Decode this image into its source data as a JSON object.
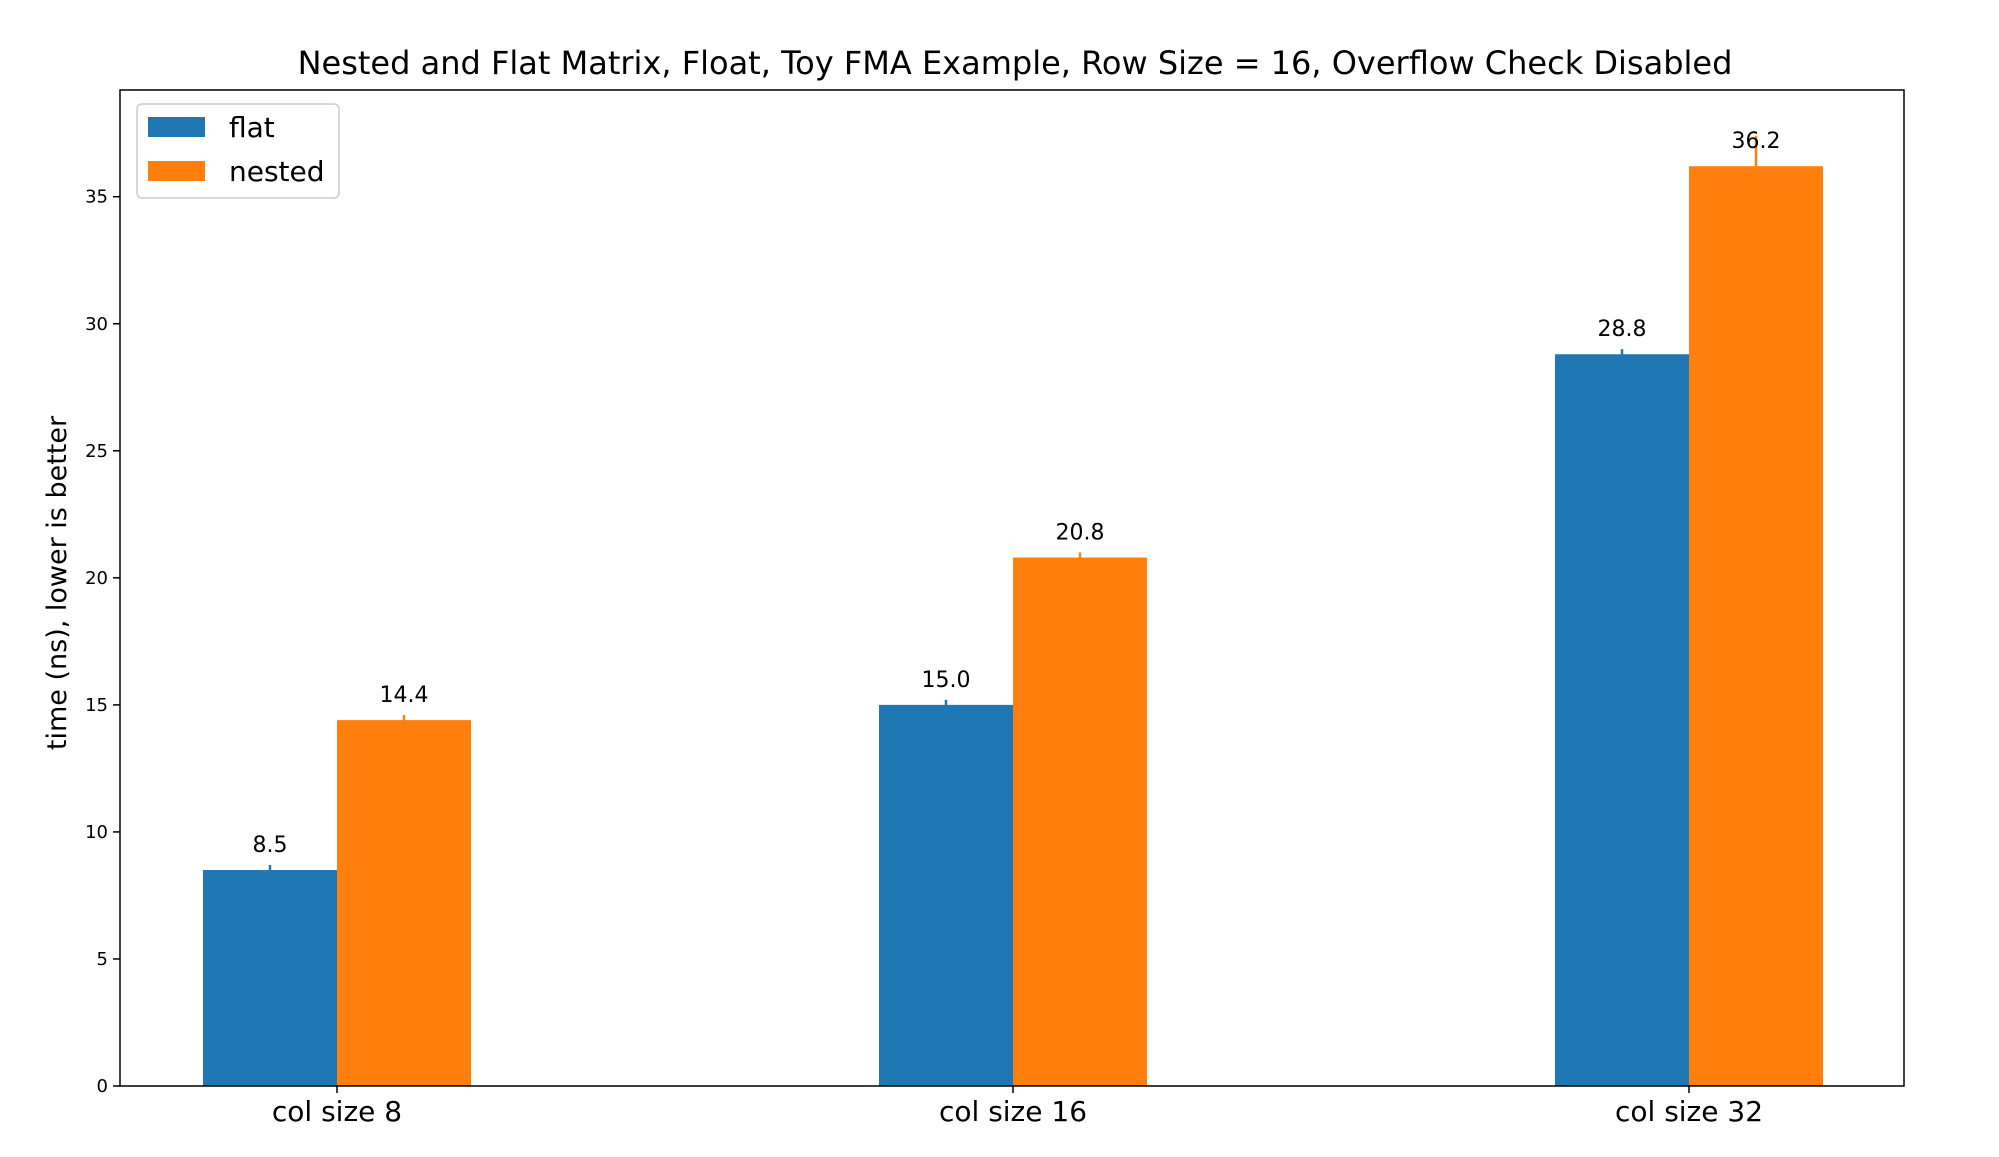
{
  "chart_data": {
    "type": "bar",
    "title": "Nested and Flat Matrix, Float, Toy FMA Example, Row Size = 16, Overflow Check Disabled",
    "xlabel": "",
    "ylabel": "time (ns), lower is better",
    "categories": [
      "col size 8",
      "col size 16",
      "col size 32"
    ],
    "series": [
      {
        "name": "flat",
        "color": "#1f77b4",
        "values": [
          8.5,
          15.0,
          28.8
        ],
        "labels": [
          "8.5",
          "15.0",
          "28.8"
        ],
        "errors": [
          0.2,
          0.2,
          0.2
        ]
      },
      {
        "name": "nested",
        "color": "#ff7f0e",
        "values": [
          14.4,
          20.8,
          36.2
        ],
        "labels": [
          "14.4",
          "20.8",
          "36.2"
        ],
        "errors": [
          0.2,
          0.2,
          1.2
        ]
      }
    ],
    "ylim": [
      0,
      39.2
    ],
    "yticks": [
      0,
      5,
      10,
      15,
      20,
      25,
      30,
      35
    ],
    "grid": false,
    "legend_position": "upper-left"
  }
}
